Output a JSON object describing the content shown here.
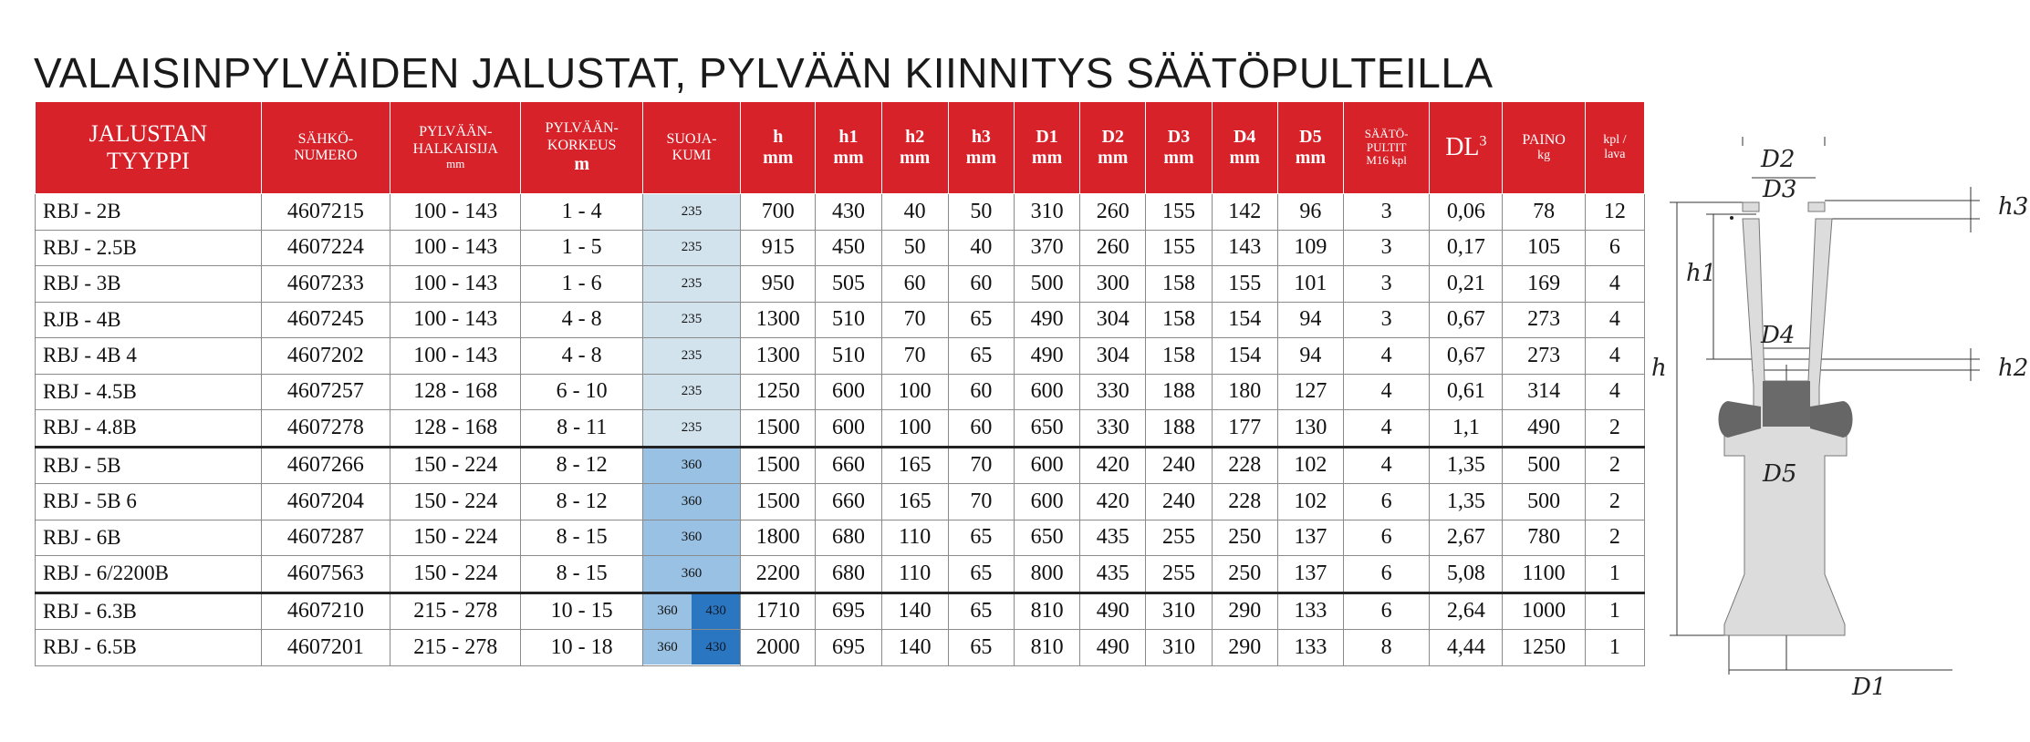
{
  "title": "VALAISINPYLVÄIDEN JALUSTAT, PYLVÄÄN KIINNITYS SÄÄTÖPULTEILLA",
  "header": {
    "type_l1": "JALUSTAN",
    "type_l2": "TYYPPI",
    "sahko_l1": "SÄHKÖ-",
    "sahko_l2": "NUMERO",
    "halk_l1": "PYLVÄÄN-",
    "halk_l2": "HALKAISIJA",
    "halk_unit": "mm",
    "kork_l1": "PYLVÄÄN-",
    "kork_l2": "KORKEUS",
    "kork_unit": "m",
    "suoja_l1": "SUOJA-",
    "suoja_l2": "KUMI",
    "h": "h",
    "h1": "h1",
    "h2": "h2",
    "h3": "h3",
    "d1": "D1",
    "d2": "D2",
    "d3": "D3",
    "d4": "D4",
    "d5": "D5",
    "mm": "mm",
    "saato_l1": "SÄÄTÖ-",
    "saato_l2": "PULTIT",
    "saato_l3": "M16 kpl",
    "dl": "DL",
    "dl_sup": "3",
    "paino": "PAINO",
    "paino_unit": "kg",
    "kpl_l1": "kpl /",
    "kpl_l2": "lava"
  },
  "rows": [
    {
      "type": "RBJ - 2B",
      "sahko": "4607215",
      "halk": "100 - 143",
      "kork": "1 - 4",
      "kumi": "235",
      "h": "700",
      "h1": "430",
      "h2": "40",
      "h3": "50",
      "d1": "310",
      "d2": "260",
      "d3": "155",
      "d4": "142",
      "d5": "96",
      "pultit": "3",
      "dl": "0,06",
      "paino": "78",
      "kpl": "12"
    },
    {
      "type": "RBJ - 2.5B",
      "sahko": "4607224",
      "halk": "100 - 143",
      "kork": "1 - 5",
      "kumi": "235",
      "h": "915",
      "h1": "450",
      "h2": "50",
      "h3": "40",
      "d1": "370",
      "d2": "260",
      "d3": "155",
      "d4": "143",
      "d5": "109",
      "pultit": "3",
      "dl": "0,17",
      "paino": "105",
      "kpl": "6"
    },
    {
      "type": "RBJ - 3B",
      "sahko": "4607233",
      "halk": "100 - 143",
      "kork": "1 - 6",
      "kumi": "235",
      "h": "950",
      "h1": "505",
      "h2": "60",
      "h3": "60",
      "d1": "500",
      "d2": "300",
      "d3": "158",
      "d4": "155",
      "d5": "101",
      "pultit": "3",
      "dl": "0,21",
      "paino": "169",
      "kpl": "4"
    },
    {
      "type": "RJB - 4B",
      "sahko": "4607245",
      "halk": "100 - 143",
      "kork": "4 - 8",
      "kumi": "235",
      "h": "1300",
      "h1": "510",
      "h2": "70",
      "h3": "65",
      "d1": "490",
      "d2": "304",
      "d3": "158",
      "d4": "154",
      "d5": "94",
      "pultit": "3",
      "dl": "0,67",
      "paino": "273",
      "kpl": "4"
    },
    {
      "type": "RBJ - 4B 4",
      "sahko": "4607202",
      "halk": "100 - 143",
      "kork": "4 - 8",
      "kumi": "235",
      "h": "1300",
      "h1": "510",
      "h2": "70",
      "h3": "65",
      "d1": "490",
      "d2": "304",
      "d3": "158",
      "d4": "154",
      "d5": "94",
      "pultit": "4",
      "dl": "0,67",
      "paino": "273",
      "kpl": "4"
    },
    {
      "type": "RBJ - 4.5B",
      "sahko": "4607257",
      "halk": "128 - 168",
      "kork": "6 - 10",
      "kumi": "235",
      "h": "1250",
      "h1": "600",
      "h2": "100",
      "h3": "60",
      "d1": "600",
      "d2": "330",
      "d3": "188",
      "d4": "180",
      "d5": "127",
      "pultit": "4",
      "dl": "0,61",
      "paino": "314",
      "kpl": "4"
    },
    {
      "type": "RBJ - 4.8B",
      "sahko": "4607278",
      "halk": "128 - 168",
      "kork": "8 - 11",
      "kumi": "235",
      "h": "1500",
      "h1": "600",
      "h2": "100",
      "h3": "60",
      "d1": "650",
      "d2": "330",
      "d3": "188",
      "d4": "177",
      "d5": "130",
      "pultit": "4",
      "dl": "1,1",
      "paino": "490",
      "kpl": "2"
    },
    {
      "type": "RBJ - 5B",
      "sahko": "4607266",
      "halk": "150 - 224",
      "kork": "8 - 12",
      "kumi": "360",
      "h": "1500",
      "h1": "660",
      "h2": "165",
      "h3": "70",
      "d1": "600",
      "d2": "420",
      "d3": "240",
      "d4": "228",
      "d5": "102",
      "pultit": "4",
      "dl": "1,35",
      "paino": "500",
      "kpl": "2"
    },
    {
      "type": "RBJ - 5B 6",
      "sahko": "4607204",
      "halk": "150 - 224",
      "kork": "8 - 12",
      "kumi": "360",
      "h": "1500",
      "h1": "660",
      "h2": "165",
      "h3": "70",
      "d1": "600",
      "d2": "420",
      "d3": "240",
      "d4": "228",
      "d5": "102",
      "pultit": "6",
      "dl": "1,35",
      "paino": "500",
      "kpl": "2"
    },
    {
      "type": "RBJ - 6B",
      "sahko": "4607287",
      "halk": "150 - 224",
      "kork": "8 - 15",
      "kumi": "360",
      "h": "1800",
      "h1": "680",
      "h2": "110",
      "h3": "65",
      "d1": "650",
      "d2": "435",
      "d3": "255",
      "d4": "250",
      "d5": "137",
      "pultit": "6",
      "dl": "2,67",
      "paino": "780",
      "kpl": "2"
    },
    {
      "type": "RBJ - 6/2200B",
      "sahko": "4607563",
      "halk": "150 - 224",
      "kork": "8 - 15",
      "kumi": "360",
      "h": "2200",
      "h1": "680",
      "h2": "110",
      "h3": "65",
      "d1": "800",
      "d2": "435",
      "d3": "255",
      "d4": "250",
      "d5": "137",
      "pultit": "6",
      "dl": "5,08",
      "paino": "1100",
      "kpl": "1"
    },
    {
      "type": "RBJ - 6.3B",
      "sahko": "4607210",
      "halk": "215 - 278",
      "kork": "10 - 15",
      "kumi": "360",
      "kumi2": "430",
      "h": "1710",
      "h1": "695",
      "h2": "140",
      "h3": "65",
      "d1": "810",
      "d2": "490",
      "d3": "310",
      "d4": "290",
      "d5": "133",
      "pultit": "6",
      "dl": "2,64",
      "paino": "1000",
      "kpl": "1"
    },
    {
      "type": "RBJ - 6.5B",
      "sahko": "4607201",
      "halk": "215 - 278",
      "kork": "10 - 18",
      "kumi": "360",
      "kumi2": "430",
      "h": "2000",
      "h1": "695",
      "h2": "140",
      "h3": "65",
      "d1": "810",
      "d2": "490",
      "d3": "310",
      "d4": "290",
      "d5": "133",
      "pultit": "8",
      "dl": "4,44",
      "paino": "1250",
      "kpl": "1"
    }
  ],
  "diagram": {
    "labels": {
      "d1": "D1",
      "d2": "D2",
      "d3": "D3",
      "d4": "D4",
      "d5": "D5",
      "h": "h",
      "h1": "h1",
      "h2": "h2",
      "h3": "h3"
    }
  },
  "colors": {
    "header_red": "#d7222a",
    "rubber_235": "#d3e3ee",
    "rubber_360": "#98c1e4",
    "rubber_430": "#2b76c0",
    "diagram_fill": "#dcdcdc"
  }
}
